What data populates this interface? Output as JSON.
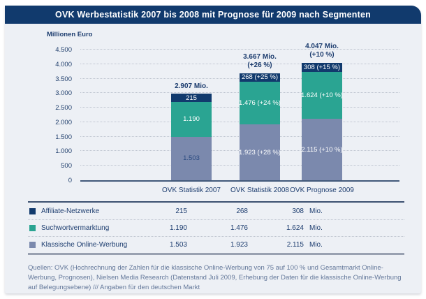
{
  "title": "OVK Werbestatistik 2007 bis 2008 mit Prognose für 2009 nach Segmenten",
  "axis_title": "Millionen Euro",
  "colors": {
    "banner": "#113a6d",
    "panel_bg": "#edf0f5",
    "affiliate": "#113a6d",
    "suchwort": "#2aa492",
    "klassisch": "#7b89ad",
    "axis_line": "#42597a",
    "gridline": "#bdc3ce",
    "footer_text": "#64789a"
  },
  "chart_data": {
    "type": "bar",
    "stacked": true,
    "title": "OVK Werbestatistik 2007 bis 2008 mit Prognose für 2009 nach Segmenten",
    "ylabel": "Millionen Euro",
    "ylim": [
      0,
      4500
    ],
    "ytick_step": 500,
    "yticks": [
      {
        "value": 4500,
        "label": "4.500"
      },
      {
        "value": 4000,
        "label": "4.000"
      },
      {
        "value": 3500,
        "label": "3.500"
      },
      {
        "value": 3000,
        "label": "3.000"
      },
      {
        "value": 2500,
        "label": "2.500"
      },
      {
        "value": 2000,
        "label": "2.000"
      },
      {
        "value": 1500,
        "label": "1.500"
      },
      {
        "value": 1000,
        "label": "1.000"
      },
      {
        "value": 500,
        "label": "500"
      },
      {
        "value": 0,
        "label": "0"
      }
    ],
    "grid": "horizontal-dotted",
    "legend_position": "table-below",
    "categories": [
      "OVK Statistik 2007",
      "OVK Statistik 2008",
      "OVK Prognose 2009"
    ],
    "series": [
      {
        "name": "Klassische Online-Werbung",
        "color": "#7b89ad",
        "values": [
          1503,
          1923,
          2115
        ],
        "bar_labels": [
          "1.503",
          "1.923 (+28 %)",
          "2.115 (+10 %)"
        ],
        "bar_label_colors": [
          "#2a4a80",
          "#ffffff",
          "#ffffff"
        ]
      },
      {
        "name": "Suchwortvermarktung",
        "color": "#2aa492",
        "values": [
          1190,
          1476,
          1624
        ],
        "bar_labels": [
          "1.190",
          "1.476 (+24 %)",
          "1.624 (+10 %)"
        ],
        "bar_label_colors": [
          "#ffffff",
          "#ffffff",
          "#ffffff"
        ]
      },
      {
        "name": "Affiliate-Netzwerke",
        "color": "#113a6d",
        "values": [
          215,
          268,
          308
        ],
        "bar_labels": [
          "215",
          "268 (+25 %)",
          "308 (+15 %)"
        ],
        "bar_label_colors": [
          "#ffffff",
          "#ffffff",
          "#ffffff"
        ]
      }
    ],
    "totals": [
      {
        "value": 2907,
        "lines": [
          "2.907 Mio."
        ]
      },
      {
        "value": 3667,
        "lines": [
          "3.667 Mio.",
          "(+26 %)"
        ]
      },
      {
        "value": 4047,
        "lines": [
          "4.047 Mio.",
          "(+10 %)"
        ]
      }
    ]
  },
  "legend_table": {
    "rows": [
      {
        "label": "Affiliate-Netzwerke",
        "color": "#113a6d",
        "values": [
          "215",
          "268",
          "308"
        ],
        "unit": "Mio."
      },
      {
        "label": "Suchwortvermarktung",
        "color": "#2aa492",
        "values": [
          "1.190",
          "1.476",
          "1.624"
        ],
        "unit": "Mio."
      },
      {
        "label": "Klassische Online-Werbung",
        "color": "#7b89ad",
        "values": [
          "1.503",
          "1.923",
          "2.115"
        ],
        "unit": "Mio."
      }
    ]
  },
  "footer": "Quellen: OVK (Hochrechnung der Zahlen für die klassische Online-Werbung von 75 auf 100 % und Gesamtmarkt Online-Werbung, Prognosen), Nielsen Media Research (Datenstand Juli 2009, Erhebung der Daten für die klassische Online-Werbung auf Belegungsebene) /// Angaben für den deutschen Markt"
}
